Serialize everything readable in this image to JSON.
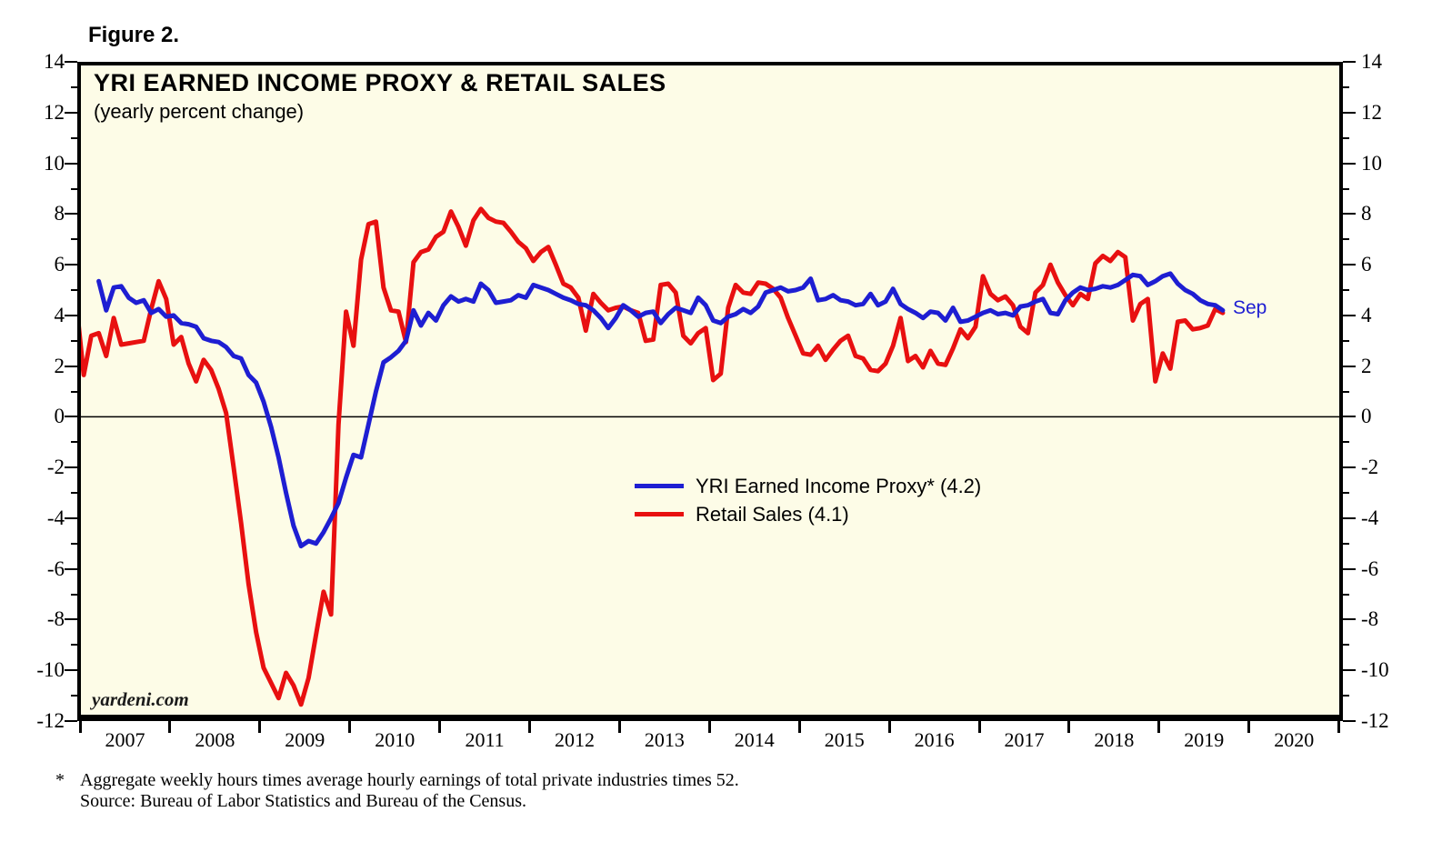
{
  "figure_label": "Figure 2.",
  "header": {
    "title": "YRI EARNED INCOME PROXY & RETAIL SALES",
    "subtitle": "(yearly percent change)"
  },
  "watermark": "yardeni.com",
  "end_label": "Sep",
  "footnote": {
    "star": "*",
    "line1": "Aggregate weekly hours times average hourly earnings of total private industries times 52.",
    "line2": "Source: Bureau of Labor Statistics and Bureau of the Census."
  },
  "colors": {
    "blue": "#1e1ed2",
    "red": "#e81010",
    "background": "#fdfce7",
    "axis": "#000000"
  },
  "legend": [
    {
      "label": "YRI Earned Income Proxy* (4.2)",
      "color": "#1e1ed2"
    },
    {
      "label": "Retail Sales (4.1)",
      "color": "#e81010"
    }
  ],
  "chart_data": {
    "type": "line",
    "title": "YRI EARNED INCOME PROXY & RETAIL SALES",
    "subtitle": "(yearly percent change)",
    "xlabel": "",
    "ylabel": "yearly percent change",
    "ylim": [
      -12,
      14
    ],
    "y_ticks": [
      14,
      12,
      10,
      8,
      6,
      4,
      2,
      0,
      -2,
      -4,
      -6,
      -8,
      -10,
      -12
    ],
    "x_years": [
      2007,
      2008,
      2009,
      2010,
      2011,
      2012,
      2013,
      2014,
      2015,
      2016,
      2017,
      2018,
      2019,
      2020
    ],
    "grid": false,
    "zero_line": true,
    "legend_position": "center-right inside",
    "last_point_label": "Sep",
    "x_unit": "month",
    "series": [
      {
        "name": "YRI Earned Income Proxy* (4.2)",
        "color": "#1e1ed2",
        "start": "2007-03",
        "end": "2019-09",
        "end_value_label": 4.2,
        "values": [
          5.35,
          4.2,
          5.1,
          5.15,
          4.7,
          4.5,
          4.6,
          4.1,
          4.25,
          3.95,
          4.0,
          3.7,
          3.65,
          3.55,
          3.1,
          3.0,
          2.95,
          2.75,
          2.4,
          2.3,
          1.65,
          1.35,
          0.6,
          -0.4,
          -1.6,
          -3.0,
          -4.3,
          -5.1,
          -4.9,
          -5.0,
          -4.55,
          -4.0,
          -3.4,
          -2.4,
          -1.5,
          -1.6,
          -0.3,
          1.0,
          2.15,
          2.35,
          2.6,
          3.0,
          4.2,
          3.6,
          4.1,
          3.8,
          4.4,
          4.75,
          4.55,
          4.65,
          4.55,
          5.25,
          5.0,
          4.5,
          4.55,
          4.6,
          4.8,
          4.7,
          5.2,
          5.1,
          5.0,
          4.85,
          4.7,
          4.6,
          4.45,
          4.4,
          4.2,
          3.9,
          3.5,
          3.9,
          4.4,
          4.2,
          3.95,
          4.1,
          4.15,
          3.7,
          4.05,
          4.3,
          4.2,
          4.1,
          4.7,
          4.4,
          3.8,
          3.7,
          3.95,
          4.05,
          4.25,
          4.1,
          4.35,
          4.9,
          5.0,
          5.1,
          4.95,
          5.0,
          5.1,
          5.45,
          4.6,
          4.65,
          4.8,
          4.6,
          4.55,
          4.4,
          4.45,
          4.85,
          4.4,
          4.55,
          5.05,
          4.45,
          4.25,
          4.1,
          3.9,
          4.15,
          4.1,
          3.8,
          4.3,
          3.75,
          3.8,
          3.95,
          4.1,
          4.2,
          4.05,
          4.1,
          4.0,
          4.35,
          4.4,
          4.55,
          4.65,
          4.1,
          4.05,
          4.6,
          4.9,
          5.1,
          5.0,
          5.05,
          5.15,
          5.1,
          5.2,
          5.4,
          5.6,
          5.55,
          5.2,
          5.35,
          5.55,
          5.65,
          5.25,
          5.0,
          4.85,
          4.6,
          4.45,
          4.4,
          4.2
        ]
      },
      {
        "name": "Retail Sales (4.1)",
        "color": "#e81010",
        "start": "2006-12",
        "end": "2019-09",
        "end_value_label": 4.1,
        "values": [
          4.5,
          1.65,
          3.2,
          3.3,
          2.4,
          3.9,
          2.85,
          2.9,
          2.95,
          3.0,
          4.25,
          5.35,
          4.65,
          2.85,
          3.15,
          2.1,
          1.4,
          2.25,
          1.85,
          1.1,
          0.15,
          -2.0,
          -4.2,
          -6.6,
          -8.5,
          -9.9,
          -10.5,
          -11.1,
          -10.1,
          -10.6,
          -11.35,
          -10.3,
          -8.6,
          -6.9,
          -7.8,
          -0.3,
          4.15,
          2.8,
          6.2,
          7.6,
          7.7,
          5.1,
          4.2,
          4.15,
          2.95,
          6.1,
          6.5,
          6.6,
          7.1,
          7.3,
          8.1,
          7.5,
          6.75,
          7.75,
          8.2,
          7.85,
          7.7,
          7.65,
          7.3,
          6.9,
          6.65,
          6.15,
          6.5,
          6.7,
          6.0,
          5.25,
          5.1,
          4.7,
          3.4,
          4.85,
          4.5,
          4.2,
          4.3,
          4.35,
          4.2,
          4.1,
          3.0,
          3.05,
          5.2,
          5.25,
          4.9,
          3.2,
          2.9,
          3.3,
          3.5,
          1.45,
          1.7,
          4.3,
          5.2,
          4.9,
          4.85,
          5.3,
          5.25,
          5.05,
          4.7,
          3.9,
          3.2,
          2.5,
          2.45,
          2.8,
          2.25,
          2.65,
          3.0,
          3.2,
          2.4,
          2.3,
          1.85,
          1.8,
          2.1,
          2.8,
          3.9,
          2.2,
          2.4,
          1.95,
          2.6,
          2.1,
          2.05,
          2.7,
          3.45,
          3.1,
          3.55,
          5.55,
          4.85,
          4.6,
          4.75,
          4.4,
          3.55,
          3.3,
          4.9,
          5.2,
          6.0,
          5.3,
          4.8,
          4.4,
          4.85,
          4.65,
          6.05,
          6.35,
          6.15,
          6.5,
          6.3,
          3.8,
          4.45,
          4.65,
          1.4,
          2.5,
          1.9,
          3.75,
          3.8,
          3.45,
          3.5,
          3.6,
          4.25,
          4.1
        ]
      }
    ]
  }
}
